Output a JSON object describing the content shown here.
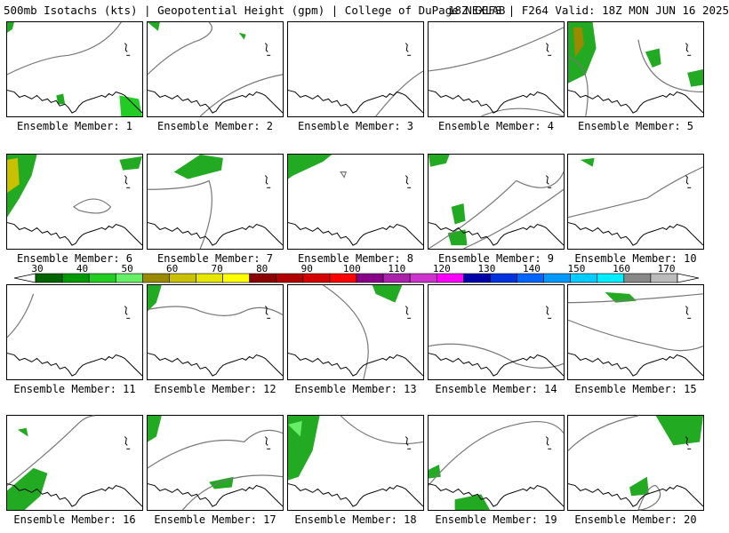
{
  "title": {
    "left": "500mb Isotachs (kts) | Geopotential Height (gpm) | College of DuPage NEXLAB",
    "right": "18Z GEFS | F264 Valid: 18Z MON JUN 16 2025"
  },
  "colorbar": {
    "ticks": [
      "30",
      "40",
      "50",
      "60",
      "70",
      "80",
      "90",
      "100",
      "110",
      "120",
      "130",
      "140",
      "150",
      "160",
      "170"
    ],
    "colors": [
      "#006400",
      "#009a00",
      "#22cc22",
      "#66ee66",
      "#9a8a00",
      "#c8c000",
      "#e6e600",
      "#ffff00",
      "#8b0000",
      "#b00000",
      "#d40000",
      "#ff0000",
      "#880088",
      "#aa22aa",
      "#cc33cc",
      "#ff00ff",
      "#0000aa",
      "#0033dd",
      "#0066ff",
      "#0099ff",
      "#00ccff",
      "#00eeff",
      "#888888",
      "#bbbbbb"
    ]
  },
  "panels": [
    {
      "label": "Ensemble Member: 1"
    },
    {
      "label": "Ensemble Member: 2"
    },
    {
      "label": "Ensemble Member: 3"
    },
    {
      "label": "Ensemble Member: 4"
    },
    {
      "label": "Ensemble Member: 5"
    },
    {
      "label": "Ensemble Member: 6"
    },
    {
      "label": "Ensemble Member: 7"
    },
    {
      "label": "Ensemble Member: 8"
    },
    {
      "label": "Ensemble Member: 9"
    },
    {
      "label": "Ensemble Member: 10"
    },
    {
      "label": "Ensemble Member: 11"
    },
    {
      "label": "Ensemble Member: 12"
    },
    {
      "label": "Ensemble Member: 13"
    },
    {
      "label": "Ensemble Member: 14"
    },
    {
      "label": "Ensemble Member: 15"
    },
    {
      "label": "Ensemble Member: 16"
    },
    {
      "label": "Ensemble Member: 17"
    },
    {
      "label": "Ensemble Member: 18"
    },
    {
      "label": "Ensemble Member: 19"
    },
    {
      "label": "Ensemble Member: 20"
    }
  ]
}
